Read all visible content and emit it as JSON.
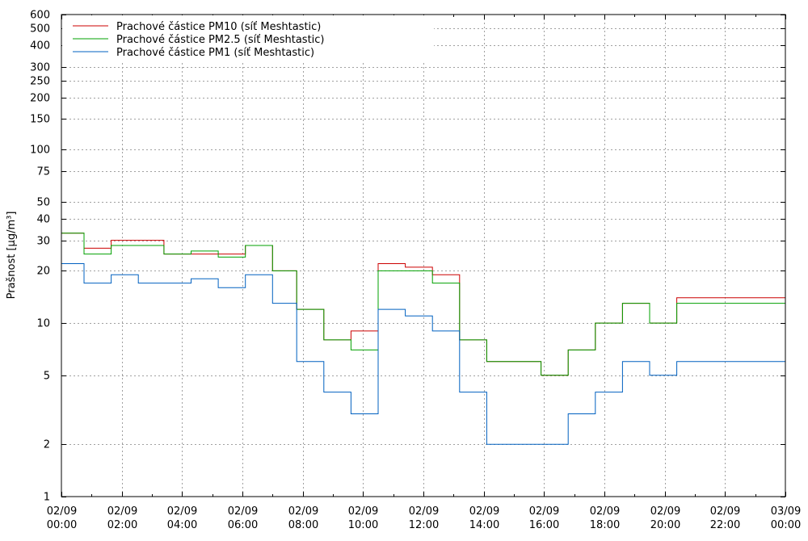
{
  "chart_data": {
    "type": "line",
    "step": true,
    "ylabel": "Prašnost [µg/m³]",
    "yscale": "log",
    "ylim": [
      1,
      600
    ],
    "xlim": [
      0,
      24
    ],
    "grid": true,
    "legend_position": "top-left",
    "y_ticks": [
      1,
      2,
      5,
      10,
      20,
      30,
      40,
      50,
      75,
      100,
      150,
      200,
      250,
      300,
      400,
      500,
      600
    ],
    "x_ticks": [
      {
        "hour": 0,
        "date": "02/09",
        "time": "00:00"
      },
      {
        "hour": 2,
        "date": "02/09",
        "time": "02:00"
      },
      {
        "hour": 4,
        "date": "02/09",
        "time": "04:00"
      },
      {
        "hour": 6,
        "date": "02/09",
        "time": "06:00"
      },
      {
        "hour": 8,
        "date": "02/09",
        "time": "08:00"
      },
      {
        "hour": 10,
        "date": "02/09",
        "time": "10:00"
      },
      {
        "hour": 12,
        "date": "02/09",
        "time": "12:00"
      },
      {
        "hour": 14,
        "date": "02/09",
        "time": "14:00"
      },
      {
        "hour": 16,
        "date": "02/09",
        "time": "16:00"
      },
      {
        "hour": 18,
        "date": "02/09",
        "time": "18:00"
      },
      {
        "hour": 20,
        "date": "02/09",
        "time": "20:00"
      },
      {
        "hour": 22,
        "date": "02/09",
        "time": "22:00"
      },
      {
        "hour": 24,
        "date": "03/09",
        "time": "00:00"
      }
    ],
    "series": [
      {
        "name": "Prachové částice PM10 (síť Meshtastic)",
        "color": "#cc0000",
        "points": [
          [
            0,
            33
          ],
          [
            0.75,
            27
          ],
          [
            1.65,
            30
          ],
          [
            3.4,
            25
          ],
          [
            5.2,
            25
          ],
          [
            6.1,
            28
          ],
          [
            7,
            20
          ],
          [
            7.8,
            12
          ],
          [
            8.7,
            8
          ],
          [
            9.6,
            9
          ],
          [
            10.5,
            22
          ],
          [
            11.4,
            21
          ],
          [
            12.3,
            19
          ],
          [
            13.2,
            8
          ],
          [
            14.1,
            6
          ],
          [
            15.9,
            5
          ],
          [
            16.8,
            7
          ],
          [
            17.7,
            10
          ],
          [
            18.6,
            13
          ],
          [
            19.5,
            10
          ],
          [
            20.4,
            14
          ],
          [
            24,
            14
          ]
        ]
      },
      {
        "name": "Prachové částice PM2.5 (síť Meshtastic)",
        "color": "#00a000",
        "points": [
          [
            0,
            33
          ],
          [
            0.75,
            25
          ],
          [
            1.65,
            28
          ],
          [
            3.4,
            25
          ],
          [
            4.3,
            26
          ],
          [
            5.2,
            24
          ],
          [
            6.1,
            28
          ],
          [
            7,
            20
          ],
          [
            7.8,
            12
          ],
          [
            8.7,
            8
          ],
          [
            9.6,
            7
          ],
          [
            10.5,
            20
          ],
          [
            12.3,
            17
          ],
          [
            13.2,
            8
          ],
          [
            14.1,
            6
          ],
          [
            15.9,
            5
          ],
          [
            16.8,
            7
          ],
          [
            17.7,
            10
          ],
          [
            18.6,
            13
          ],
          [
            19.5,
            10
          ],
          [
            20.4,
            13
          ],
          [
            24,
            13
          ]
        ]
      },
      {
        "name": "Prachové částice PM1 (síť Meshtastic)",
        "color": "#0060c0",
        "points": [
          [
            0,
            22
          ],
          [
            0.75,
            17
          ],
          [
            1.65,
            19
          ],
          [
            2.55,
            17
          ],
          [
            4.3,
            18
          ],
          [
            5.2,
            16
          ],
          [
            6.1,
            19
          ],
          [
            7,
            13
          ],
          [
            7.8,
            6
          ],
          [
            8.7,
            4
          ],
          [
            9.6,
            3
          ],
          [
            10.5,
            12
          ],
          [
            11.4,
            11
          ],
          [
            12.3,
            9
          ],
          [
            13.2,
            4
          ],
          [
            14.1,
            2
          ],
          [
            16.8,
            3
          ],
          [
            17.7,
            4
          ],
          [
            18.6,
            6
          ],
          [
            19.5,
            5
          ],
          [
            20.4,
            6
          ],
          [
            24,
            6
          ]
        ]
      }
    ]
  }
}
